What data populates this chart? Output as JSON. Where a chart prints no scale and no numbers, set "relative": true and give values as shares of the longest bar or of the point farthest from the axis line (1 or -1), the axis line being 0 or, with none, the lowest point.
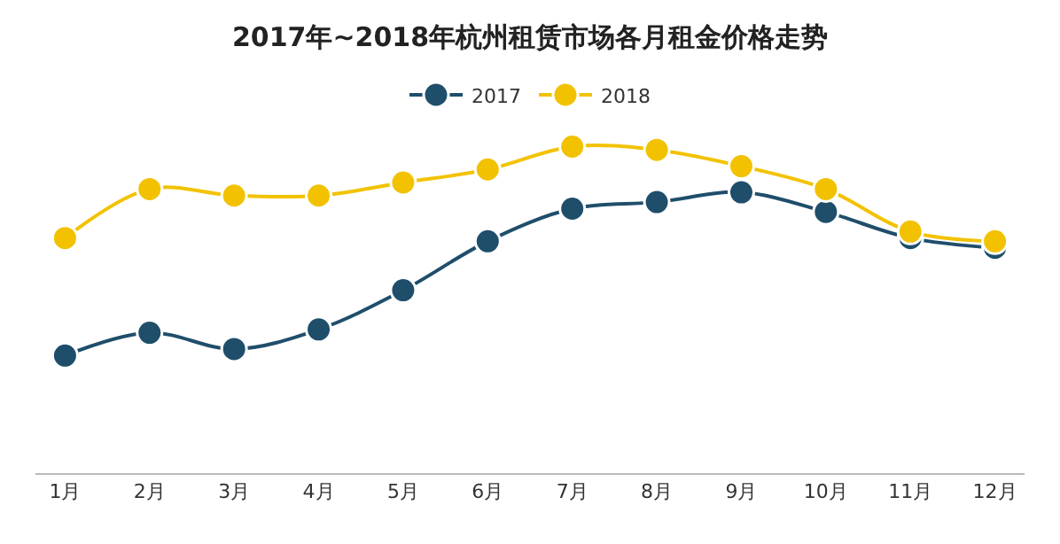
{
  "chart_data": {
    "type": "line",
    "title": "2017年~2018年杭州租赁市场各月租金价格走势",
    "relative": true,
    "categories": [
      "1月",
      "2月",
      "3月",
      "4月",
      "5月",
      "6月",
      "7月",
      "8月",
      "9月",
      "10月",
      "11月",
      "12月"
    ],
    "series": [
      {
        "name": "2017",
        "color": "#1f4e6b",
        "values": [
          0.36,
          0.43,
          0.38,
          0.44,
          0.56,
          0.71,
          0.81,
          0.83,
          0.86,
          0.8,
          0.72,
          0.69
        ]
      },
      {
        "name": "2018",
        "color": "#f2c200",
        "values": [
          0.72,
          0.87,
          0.85,
          0.85,
          0.89,
          0.93,
          1,
          0.99,
          0.94,
          0.87,
          0.74,
          0.71
        ]
      }
    ],
    "legend": "top",
    "marker": "circle",
    "line_style": "solid"
  }
}
